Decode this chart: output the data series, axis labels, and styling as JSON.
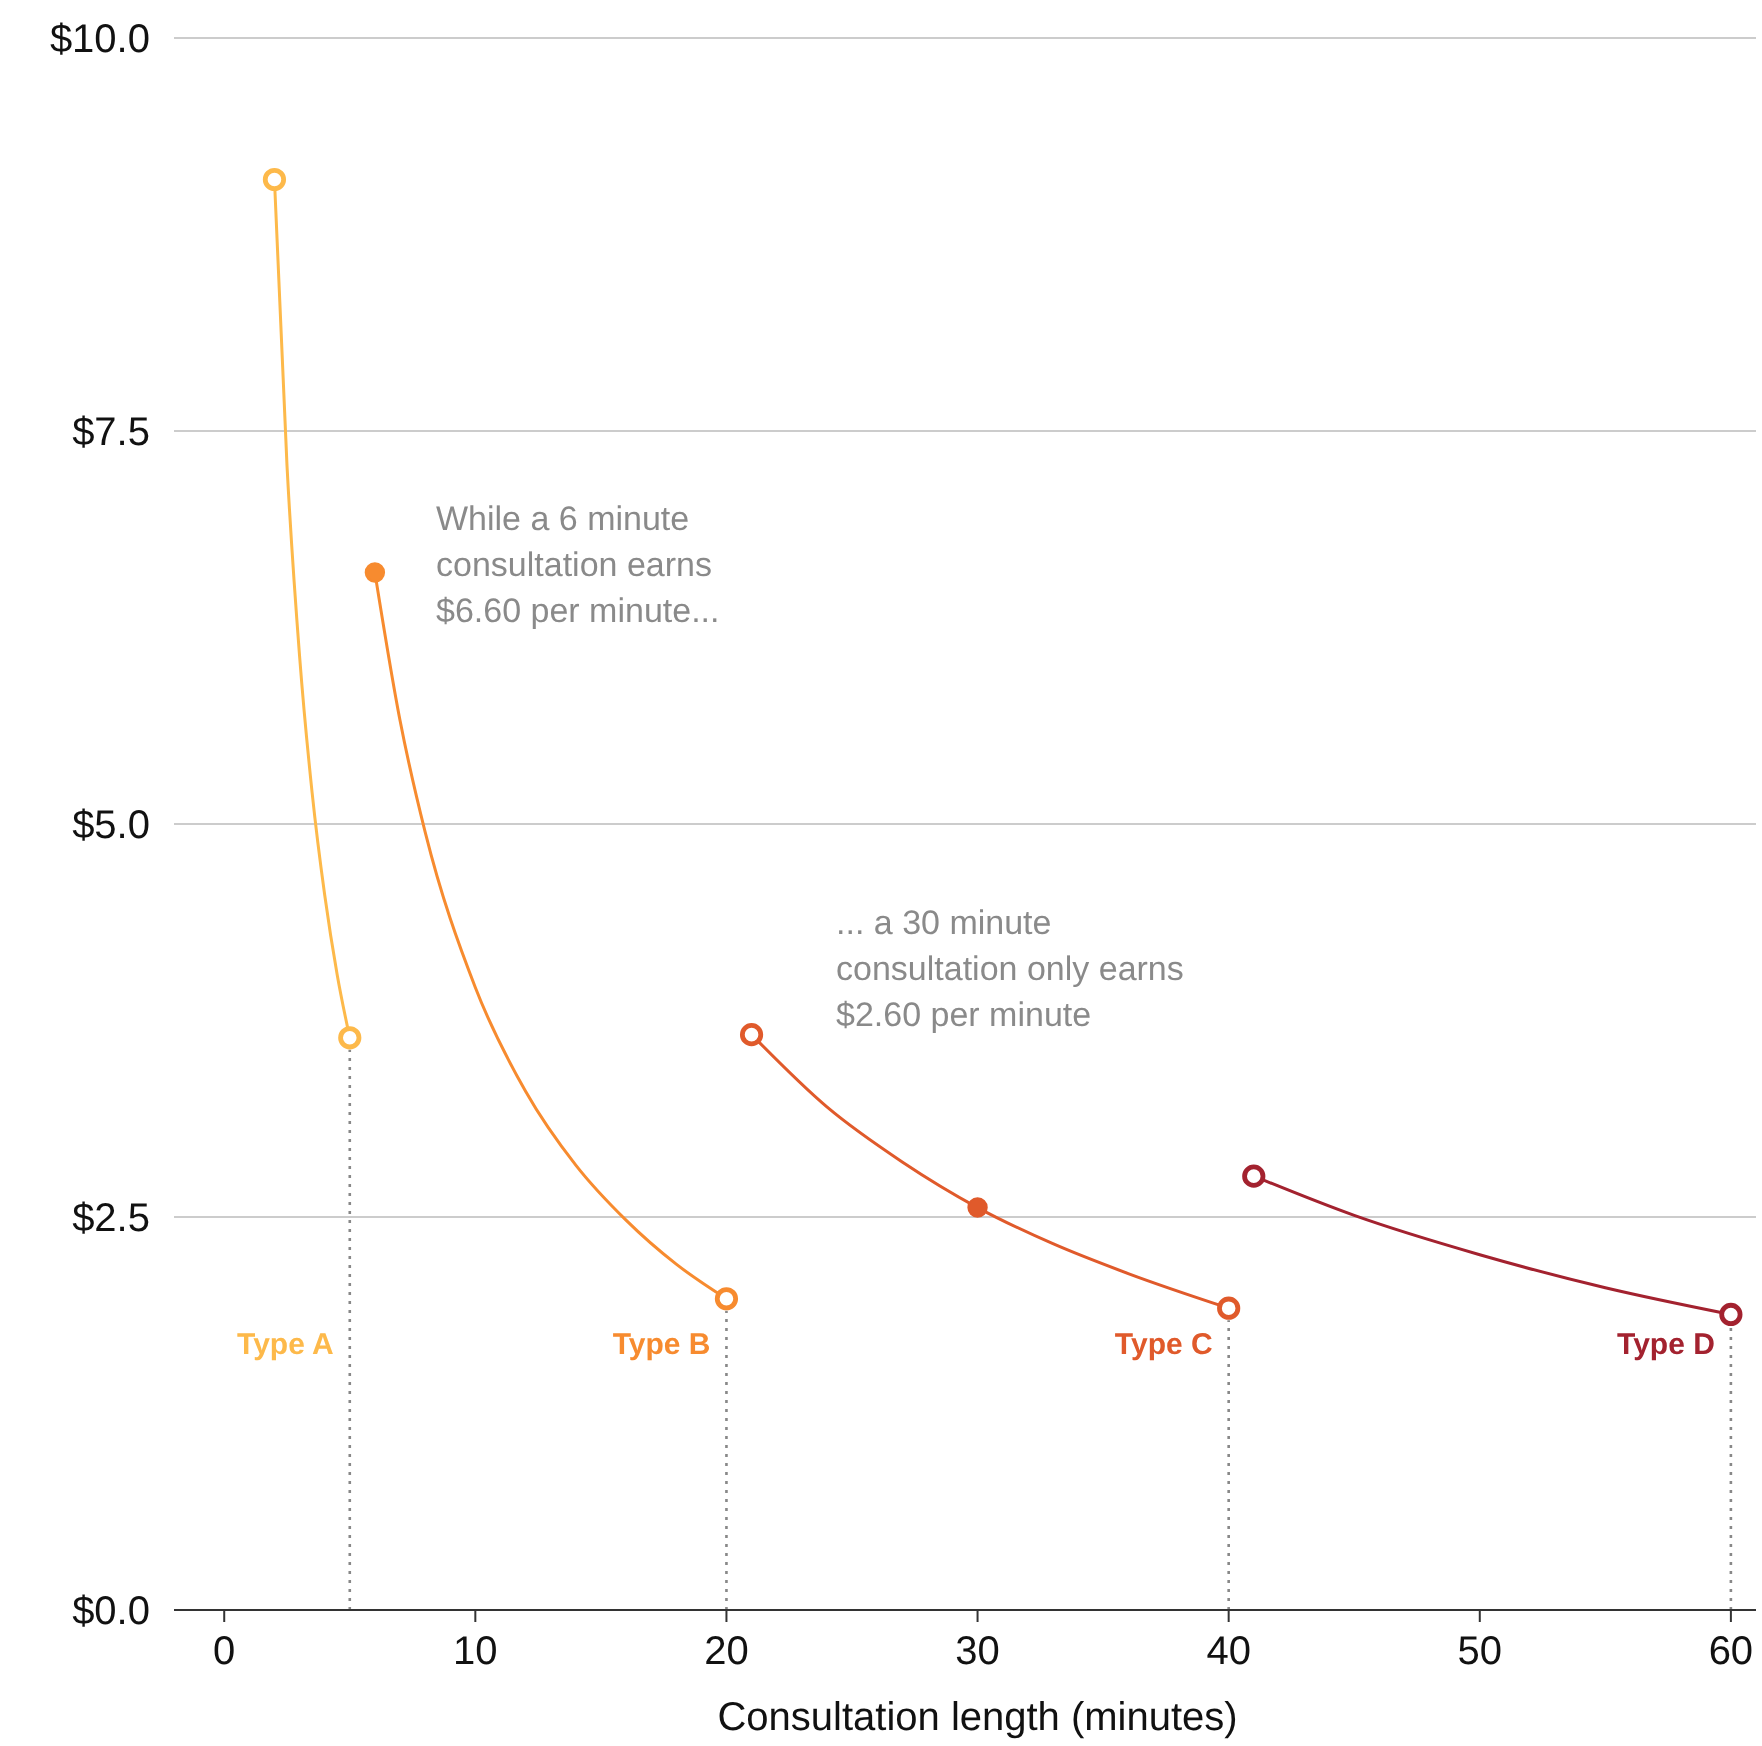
{
  "chart_data": {
    "type": "line",
    "xlabel": "Consultation length (minutes)",
    "xlim": [
      -2,
      61
    ],
    "xticks": [
      0,
      10,
      20,
      30,
      40,
      50,
      60
    ],
    "ylim": [
      0,
      10
    ],
    "yticks": [
      {
        "value": 0,
        "label": "$0.0"
      },
      {
        "value": 2.5,
        "label": "$2.5"
      },
      {
        "value": 5,
        "label": "$5.0"
      },
      {
        "value": 7.5,
        "label": "$7.5"
      },
      {
        "value": 10,
        "label": "$10.0"
      }
    ],
    "grid": "y",
    "marker": "none",
    "line_style": "solid",
    "series": [
      {
        "name": "Type A",
        "color": "#fdb94a",
        "x": [
          2,
          2.5,
          3,
          3.5,
          4,
          4.5,
          5
        ],
        "values": [
          9.1,
          7.28,
          6.07,
          5.2,
          4.55,
          4.04,
          3.64
        ]
      },
      {
        "name": "Type B",
        "color": "#f78b2f",
        "x": [
          6,
          7,
          8,
          10,
          12,
          14,
          16,
          18,
          20
        ],
        "values": [
          6.6,
          5.66,
          4.95,
          3.96,
          3.3,
          2.83,
          2.48,
          2.2,
          1.98
        ]
      },
      {
        "name": "Type C",
        "color": "#e05a2b",
        "x": [
          21,
          24,
          27,
          30,
          33,
          36,
          40
        ],
        "values": [
          3.66,
          3.2,
          2.85,
          2.56,
          2.33,
          2.14,
          1.92
        ]
      },
      {
        "name": "Type D",
        "color": "#a3222f",
        "x": [
          41,
          45,
          50,
          55,
          60
        ],
        "values": [
          2.76,
          2.51,
          2.26,
          2.05,
          1.88
        ]
      },
      {
        "type": "scatter",
        "marker": "circle",
        "color": "#ffffff",
        "x": [
          2,
          5,
          20,
          21,
          40,
          41,
          60
        ],
        "values": [
          9.1,
          3.64,
          1.98,
          3.66,
          1.92,
          2.76,
          1.88
        ],
        "colors": [
          "#fdb94a",
          "#fdb94a",
          "#f78b2f",
          "#e05a2b",
          "#e05a2b",
          "#a3222f",
          "#a3222f"
        ]
      },
      {
        "type": "scatter",
        "marker": "circle",
        "x": [
          6,
          30
        ],
        "values": [
          6.6,
          2.56
        ],
        "colors": [
          "#f78b2f",
          "#e05a2b"
        ]
      }
    ],
    "ref_lines": [
      {
        "axis": "x",
        "value": 5,
        "color": "#888888",
        "line_style": "dotted"
      },
      {
        "axis": "x",
        "value": 20,
        "color": "#888888",
        "line_style": "dotted"
      },
      {
        "axis": "x",
        "value": 40,
        "color": "#888888",
        "line_style": "dotted"
      },
      {
        "axis": "x",
        "value": 60,
        "color": "#888888",
        "line_style": "dotted"
      }
    ],
    "annotations": [
      "While a 6 minute\nconsultation earns\n$6.60 per minute...",
      "... a 30 minute\nconsultation only earns\n$2.60 per minute"
    ]
  }
}
